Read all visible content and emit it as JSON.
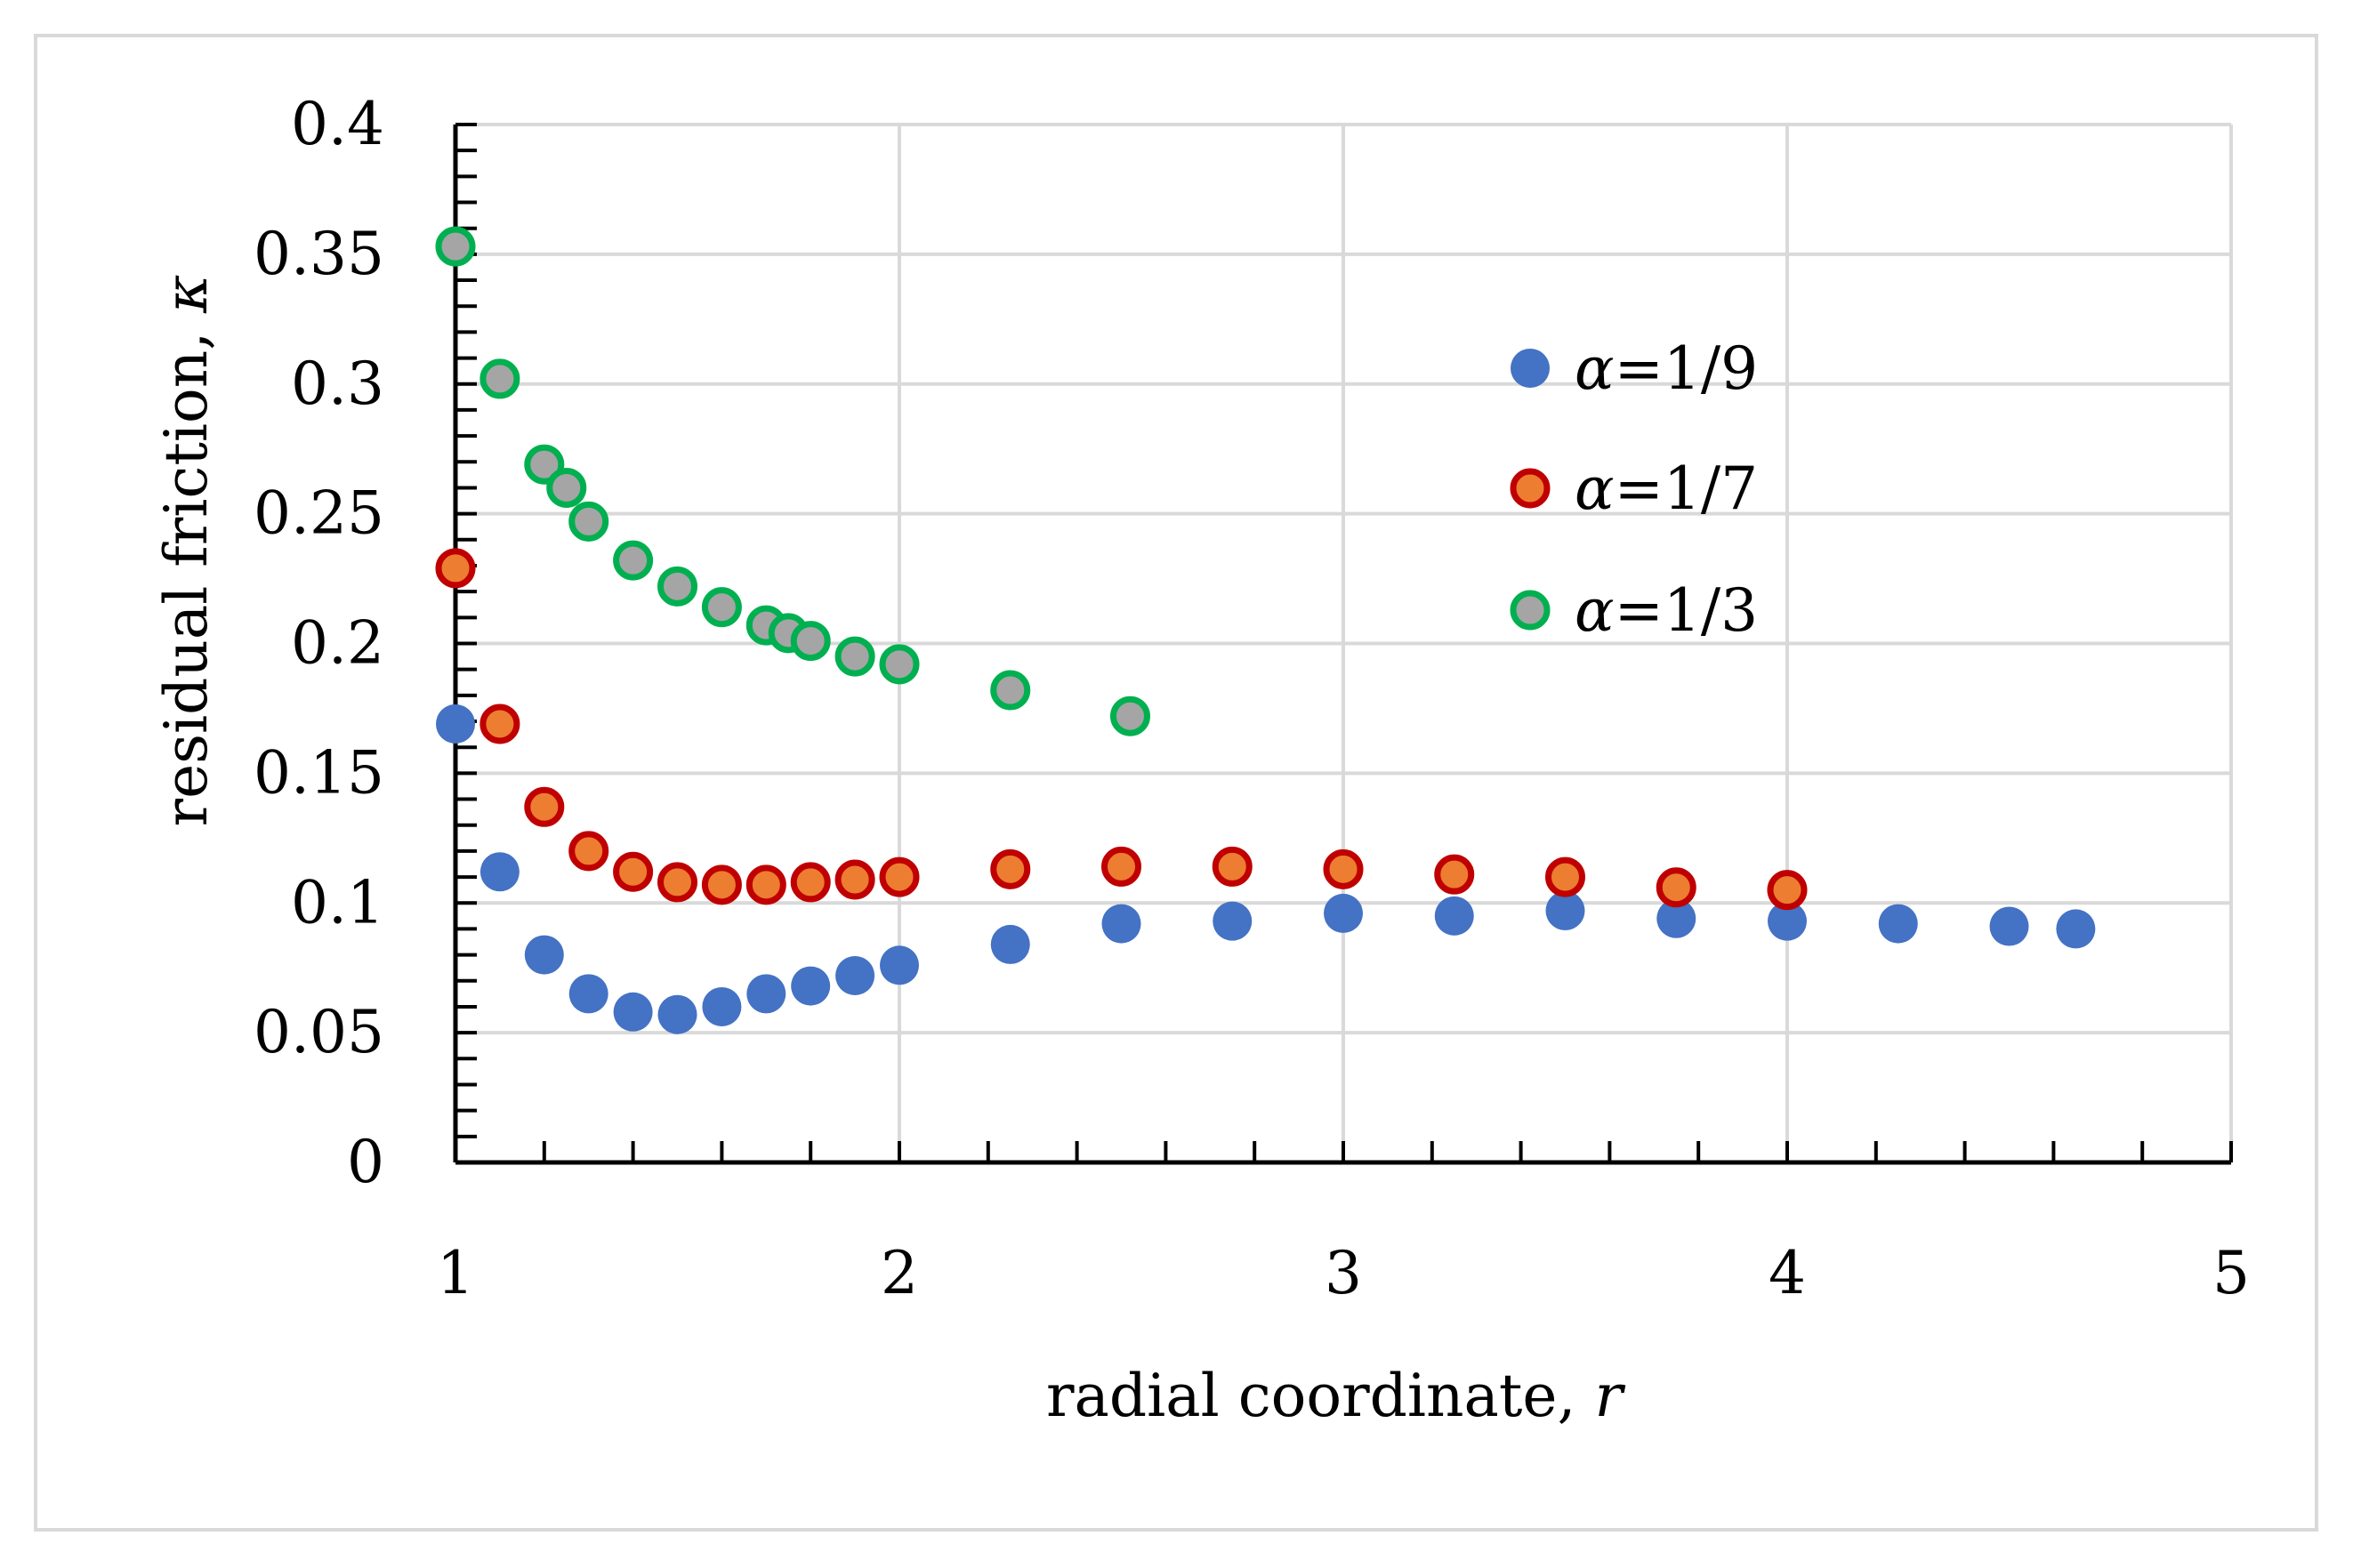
{
  "chart_data": {
    "type": "scatter",
    "title": "",
    "xlabel": "radial coordinate, ",
    "xlabel_var": "r",
    "ylabel": "residual friction, ",
    "ylabel_var": "κ",
    "xlim": [
      1,
      5
    ],
    "ylim": [
      0,
      0.4
    ],
    "x_ticks": [
      1,
      2,
      3,
      4,
      5
    ],
    "x_tick_labels": [
      "1",
      "2",
      "3",
      "4",
      "5"
    ],
    "y_ticks": [
      0,
      0.05,
      0.1,
      0.15,
      0.2,
      0.25,
      0.3,
      0.35,
      0.4
    ],
    "y_tick_labels": [
      "0",
      "0.05",
      "0.1",
      "0.15",
      "0.2",
      "0.25",
      "0.3",
      "0.35",
      "0.4"
    ],
    "grid": true,
    "legend_position": "right-middle",
    "series": [
      {
        "name": "α=1/9",
        "symbol": "α",
        "suffix": "=1/9",
        "fill": "#4472c4",
        "stroke": "#4472c4",
        "x": [
          1.0,
          1.1,
          1.2,
          1.3,
          1.4,
          1.5,
          1.6,
          1.7,
          1.8,
          1.9,
          2.0,
          2.25,
          2.5,
          2.75,
          3.0,
          3.25,
          3.5,
          3.75,
          4.0,
          4.25,
          4.5,
          4.65
        ],
        "y": [
          0.169,
          0.112,
          0.08,
          0.065,
          0.058,
          0.057,
          0.06,
          0.065,
          0.068,
          0.072,
          0.076,
          0.084,
          0.092,
          0.093,
          0.096,
          0.095,
          0.097,
          0.094,
          0.093,
          0.092,
          0.091,
          0.09
        ]
      },
      {
        "name": "α=1/7",
        "symbol": "α",
        "suffix": "=1/7",
        "fill": "#ed7d31",
        "stroke": "#c00000",
        "x": [
          1.0,
          1.1,
          1.2,
          1.3,
          1.4,
          1.5,
          1.6,
          1.7,
          1.8,
          1.9,
          2.0,
          2.25,
          2.5,
          2.75,
          3.0,
          3.25,
          3.5,
          3.75,
          4.0
        ],
        "y": [
          0.229,
          0.169,
          0.137,
          0.12,
          0.112,
          0.108,
          0.107,
          0.107,
          0.108,
          0.109,
          0.11,
          0.113,
          0.114,
          0.114,
          0.113,
          0.111,
          0.11,
          0.106,
          0.105
        ]
      },
      {
        "name": "α=1/3",
        "symbol": "α",
        "suffix": "=1/3",
        "fill": "#a5a5a5",
        "stroke": "#00b050",
        "x": [
          1.0,
          1.1,
          1.2,
          1.25,
          1.3,
          1.4,
          1.5,
          1.6,
          1.7,
          1.75,
          1.8,
          1.9,
          2.0,
          2.25,
          2.52
        ],
        "y": [
          0.353,
          0.302,
          0.269,
          0.26,
          0.247,
          0.232,
          0.222,
          0.214,
          0.207,
          0.204,
          0.201,
          0.195,
          0.192,
          0.182,
          0.172
        ]
      }
    ]
  }
}
